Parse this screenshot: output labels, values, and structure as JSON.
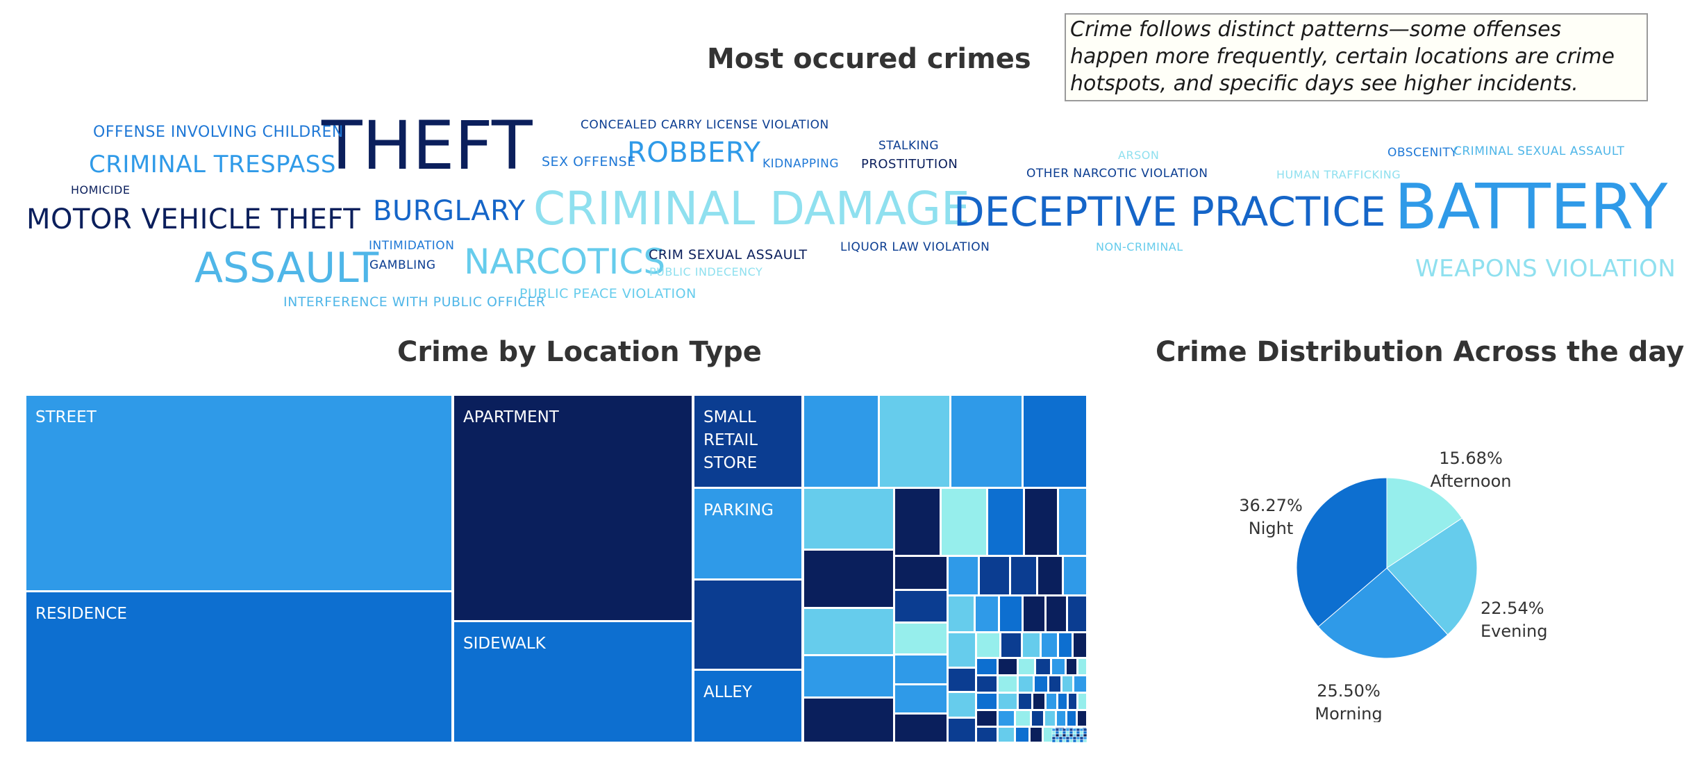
{
  "annotation": "Crime follows distinct patterns—some offenses happen more frequently, certain locations are crime hotspots, and specific days see higher incidents.",
  "chart_data": [
    {
      "type": "wordcloud",
      "title": "Most occured crimes",
      "words": [
        {
          "text": "THEFT",
          "color": "#0b1f5c"
        },
        {
          "text": "BATTERY",
          "color": "#2f9ae8"
        },
        {
          "text": "CRIMINAL DAMAGE",
          "color": "#8fe0ef"
        },
        {
          "text": "DECEPTIVE PRACTICE",
          "color": "#1565c8"
        },
        {
          "text": "ASSAULT",
          "color": "#4fb6e8"
        },
        {
          "text": "MOTOR VEHICLE THEFT",
          "color": "#0b1f5c"
        },
        {
          "text": "BURGLARY",
          "color": "#1565c8"
        },
        {
          "text": "NARCOTICS",
          "color": "#66ccec"
        },
        {
          "text": "ROBBERY",
          "color": "#2f9ae8"
        },
        {
          "text": "CRIMINAL TRESPASS",
          "color": "#2f9ae8"
        },
        {
          "text": "WEAPONS VIOLATION",
          "color": "#8fe0ef"
        },
        {
          "text": "OFFENSE INVOLVING CHILDREN",
          "color": "#1f78d6"
        },
        {
          "text": "PUBLIC PEACE VIOLATION",
          "color": "#66ccec"
        },
        {
          "text": "INTERFERENCE WITH PUBLIC OFFICER",
          "color": "#4fb6e8"
        },
        {
          "text": "SEX OFFENSE",
          "color": "#1f78d6"
        },
        {
          "text": "CRIM SEXUAL ASSAULT",
          "color": "#0b1f5c"
        },
        {
          "text": "PROSTITUTION",
          "color": "#0b1f5c"
        },
        {
          "text": "HOMICIDE",
          "color": "#0b1f5c"
        },
        {
          "text": "LIQUOR LAW VIOLATION",
          "color": "#0b3d91"
        },
        {
          "text": "OTHER NARCOTIC VIOLATION",
          "color": "#0b3d91"
        },
        {
          "text": "CONCEALED CARRY LICENSE VIOLATION",
          "color": "#0b3d91"
        },
        {
          "text": "STALKING",
          "color": "#0b3d91"
        },
        {
          "text": "KIDNAPPING",
          "color": "#1f78d6"
        },
        {
          "text": "INTIMIDATION",
          "color": "#1f78d6"
        },
        {
          "text": "GAMBLING",
          "color": "#0b3d91"
        },
        {
          "text": "ARSON",
          "color": "#8fe0ef"
        },
        {
          "text": "HUMAN TRAFFICKING",
          "color": "#8fe0ef"
        },
        {
          "text": "NON-CRIMINAL",
          "color": "#66ccec"
        },
        {
          "text": "PUBLIC INDECENCY",
          "color": "#8fe0ef"
        },
        {
          "text": "OBSCENITY",
          "color": "#1f78d6"
        },
        {
          "text": "CRIMINAL SEXUAL ASSAULT",
          "color": "#4fb6e8"
        }
      ]
    },
    {
      "type": "treemap",
      "title": "Crime by Location Type",
      "colors": [
        "#2f9ae8",
        "#0a1f5c",
        "#0d6fd0",
        "#0b3d91",
        "#66ccec",
        "#96eeec"
      ],
      "labeled_cells": [
        {
          "label": "STREET",
          "color": "#2f9ae8"
        },
        {
          "label": "RESIDENCE",
          "color": "#0d6fd0"
        },
        {
          "label": "APARTMENT",
          "color": "#0a1f5c"
        },
        {
          "label": "SIDEWALK",
          "color": "#0d6fd0"
        },
        {
          "label": "SMALL RETAIL STORE",
          "lines": [
            "SMALL",
            "RETAIL",
            "STORE"
          ],
          "color": "#0b3d91"
        },
        {
          "label": "PARKING",
          "color": "#2f9ae8"
        },
        {
          "label": "ALLEY",
          "color": "#0d6fd0"
        }
      ]
    },
    {
      "type": "pie",
      "title": "Crime Distribution Across the day",
      "slices": [
        {
          "label": "Afternoon",
          "value": 15.68,
          "display": "15.68%",
          "color": "#96eeec"
        },
        {
          "label": "Evening",
          "value": 22.54,
          "display": "22.54%",
          "color": "#66ccec"
        },
        {
          "label": "Morning",
          "value": 25.5,
          "display": "25.50%",
          "color": "#2f9ae8"
        },
        {
          "label": "Night",
          "value": 36.27,
          "display": "36.27%",
          "color": "#0d6fd0"
        }
      ]
    }
  ]
}
